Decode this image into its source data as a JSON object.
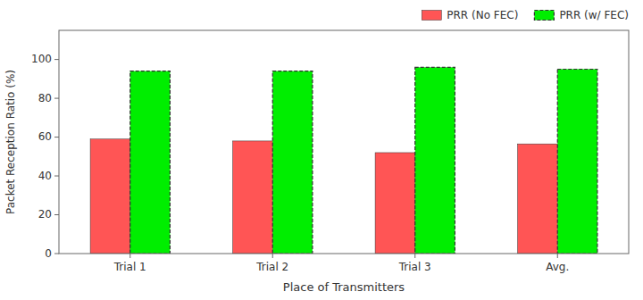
{
  "chart_data": {
    "type": "bar",
    "categories": [
      "Trial 1",
      "Trial 2",
      "Trial 3",
      "Avg."
    ],
    "series": [
      {
        "name": "PRR (No FEC)",
        "color": "#FF5555",
        "values": [
          59.0,
          58.0,
          52.0,
          56.5
        ]
      },
      {
        "name": "PRR (w/ FEC)",
        "color": "#00EE00",
        "values": [
          94.0,
          94.0,
          96.0,
          95.0
        ]
      }
    ],
    "xlabel": "Place of Transmitters",
    "ylabel": "Packet Reception Ratio (%)",
    "ylim": [
      0,
      115
    ],
    "yticks": [
      0,
      20,
      40,
      60,
      80,
      100
    ],
    "grid": false,
    "legend": "upper right"
  }
}
